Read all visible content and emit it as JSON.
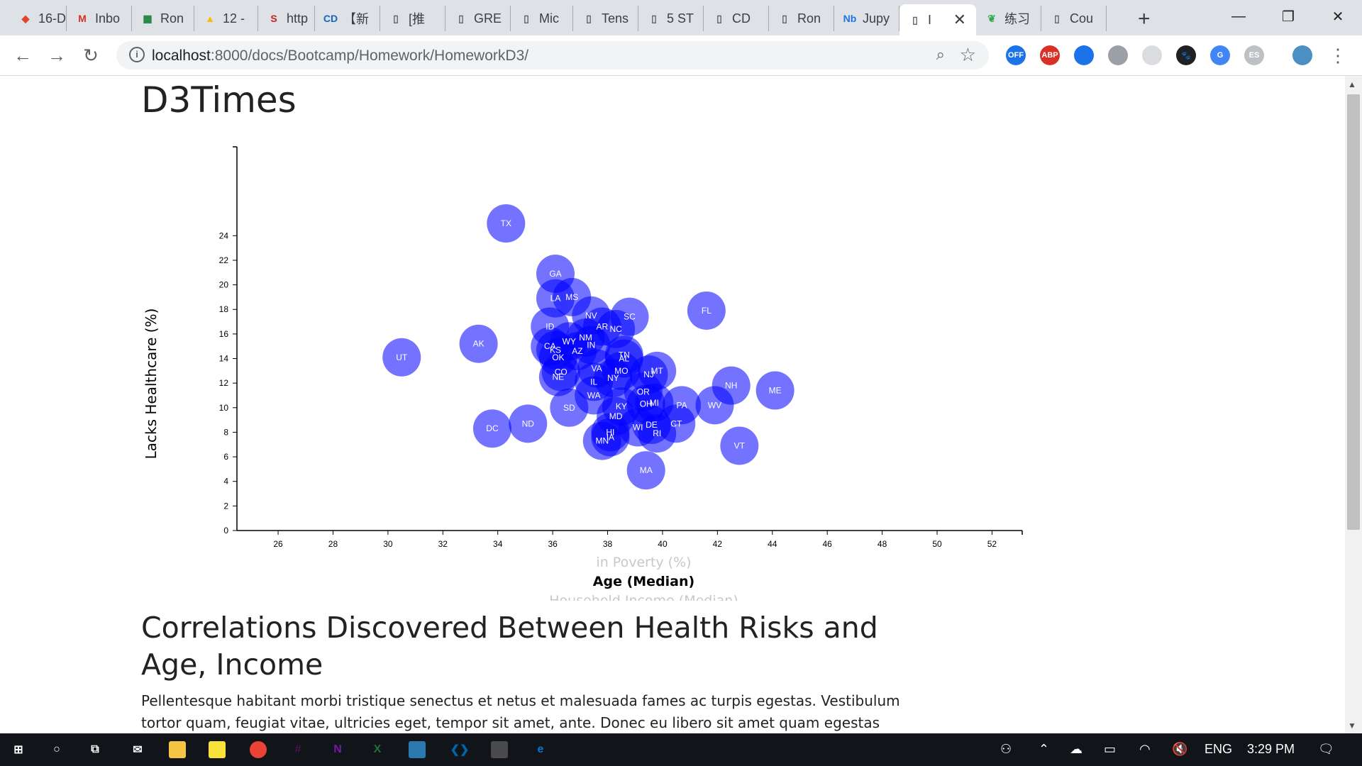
{
  "tabs": [
    {
      "label": "16-D",
      "icon": "gitlab-icon",
      "color": "#e24329"
    },
    {
      "label": "Inbo",
      "icon": "gmail-icon",
      "color": "#d93025"
    },
    {
      "label": "Ron",
      "icon": "sheets-icon",
      "color": "#188038"
    },
    {
      "label": "12 -",
      "icon": "drive-icon",
      "color": "#fbbc04"
    },
    {
      "label": "http",
      "icon": "s-icon",
      "color": "#c5221f"
    },
    {
      "label": "【新",
      "icon": "cd-icon",
      "color": "#1565c0"
    },
    {
      "label": "[推",
      "icon": "page-icon",
      "color": "#5f6368"
    },
    {
      "label": "GRE",
      "icon": "page-icon",
      "color": "#5f6368"
    },
    {
      "label": "Mic",
      "icon": "page-icon",
      "color": "#5f6368"
    },
    {
      "label": "Tens",
      "icon": "page-icon",
      "color": "#5f6368"
    },
    {
      "label": "5 ST",
      "icon": "page-icon",
      "color": "#5f6368"
    },
    {
      "label": "CD",
      "icon": "page-icon",
      "color": "#5f6368"
    },
    {
      "label": "Ron",
      "icon": "page-icon",
      "color": "#5f6368"
    },
    {
      "label": "Jupy",
      "icon": "notebook-icon",
      "color": "#1a73e8"
    },
    {
      "label": "I",
      "icon": "page-icon",
      "color": "#5f6368",
      "active": true
    },
    {
      "label": "练习",
      "icon": "leaf-icon",
      "color": "#34a853"
    },
    {
      "label": "Cou",
      "icon": "page-icon",
      "color": "#5f6368"
    }
  ],
  "address": {
    "host": "localhost",
    "path": ":8000/docs/Bootcamp/Homework/HomeworkD3/"
  },
  "extensions": [
    {
      "name": "off-extension-icon",
      "label": "OFF",
      "color": "#1a73e8"
    },
    {
      "name": "adblock-icon",
      "label": "ABP",
      "color": "#d93025"
    },
    {
      "name": "circle-extension-icon",
      "label": "",
      "color": "#1a73e8"
    },
    {
      "name": "grey-extension-icon",
      "label": "",
      "color": "#9aa0a6"
    },
    {
      "name": "light-extension-icon",
      "label": "",
      "color": "#dadce0"
    },
    {
      "name": "paw-icon",
      "label": "🐾",
      "color": "#202124"
    },
    {
      "name": "translate-icon",
      "label": "G",
      "color": "#4285f4"
    },
    {
      "name": "es-extension-icon",
      "label": "ES",
      "color": "#bdc1c6"
    }
  ],
  "page": {
    "title": "D3Times",
    "section_heading": "Correlations Discovered Between Health Risks and Age, Income",
    "body_text": "Pellentesque habitant morbi tristique senectus et netus et malesuada fames ac turpis egestas. Vestibulum tortor quam, feugiat vitae, ultricies eget, tempor sit amet, ante. Donec eu libero sit amet quam egestas semper. Aenean"
  },
  "chart_data": {
    "type": "scatter",
    "ylabel": "Lacks Healthcare (%)",
    "xlabels": [
      {
        "text": "in Poverty (%)",
        "active": false
      },
      {
        "text": "Age (Median)",
        "active": true
      },
      {
        "text": "Household Income (Median)",
        "active": false
      }
    ],
    "xlim": [
      24.5,
      53.1
    ],
    "ylim": [
      0,
      25
    ],
    "xticks": [
      26,
      28,
      30,
      32,
      34,
      36,
      38,
      40,
      42,
      44,
      46,
      48,
      50,
      52
    ],
    "yticks": [
      0,
      2,
      4,
      6,
      8,
      10,
      12,
      14,
      16,
      18,
      20,
      22,
      24
    ],
    "marker_color": "#0000ff",
    "points": [
      {
        "abbr": "TX",
        "x": 34.3,
        "y": 25.0
      },
      {
        "abbr": "GA",
        "x": 36.1,
        "y": 20.9
      },
      {
        "abbr": "LA",
        "x": 36.1,
        "y": 18.9
      },
      {
        "abbr": "MS",
        "x": 36.7,
        "y": 19.0
      },
      {
        "abbr": "FL",
        "x": 41.6,
        "y": 17.9
      },
      {
        "abbr": "NV",
        "x": 37.4,
        "y": 17.5
      },
      {
        "abbr": "SC",
        "x": 38.8,
        "y": 17.4
      },
      {
        "abbr": "ID",
        "x": 35.9,
        "y": 16.6
      },
      {
        "abbr": "AR",
        "x": 37.8,
        "y": 16.6
      },
      {
        "abbr": "NC",
        "x": 38.3,
        "y": 16.4
      },
      {
        "abbr": "NM",
        "x": 37.2,
        "y": 15.7
      },
      {
        "abbr": "WY",
        "x": 36.6,
        "y": 15.4
      },
      {
        "abbr": "AK",
        "x": 33.3,
        "y": 15.2
      },
      {
        "abbr": "IN",
        "x": 37.4,
        "y": 15.1
      },
      {
        "abbr": "CA",
        "x": 35.9,
        "y": 15.0
      },
      {
        "abbr": "KS",
        "x": 36.1,
        "y": 14.7
      },
      {
        "abbr": "AZ",
        "x": 36.9,
        "y": 14.6
      },
      {
        "abbr": "TN",
        "x": 38.6,
        "y": 14.3
      },
      {
        "abbr": "UT",
        "x": 30.5,
        "y": 14.1
      },
      {
        "abbr": "OK",
        "x": 36.2,
        "y": 14.1
      },
      {
        "abbr": "AL",
        "x": 38.6,
        "y": 14.0
      },
      {
        "abbr": "VA",
        "x": 37.6,
        "y": 13.2
      },
      {
        "abbr": "MO",
        "x": 38.5,
        "y": 13.0
      },
      {
        "abbr": "MT",
        "x": 39.8,
        "y": 13.0
      },
      {
        "abbr": "CO",
        "x": 36.3,
        "y": 12.9
      },
      {
        "abbr": "NJ",
        "x": 39.5,
        "y": 12.7
      },
      {
        "abbr": "NE",
        "x": 36.2,
        "y": 12.5
      },
      {
        "abbr": "NY",
        "x": 38.2,
        "y": 12.4
      },
      {
        "abbr": "IL",
        "x": 37.5,
        "y": 12.1
      },
      {
        "abbr": "NH",
        "x": 42.5,
        "y": 11.8
      },
      {
        "abbr": "ME",
        "x": 44.1,
        "y": 11.4
      },
      {
        "abbr": "OR",
        "x": 39.3,
        "y": 11.3
      },
      {
        "abbr": "WA",
        "x": 37.5,
        "y": 11.0
      },
      {
        "abbr": "MI",
        "x": 39.7,
        "y": 10.4
      },
      {
        "abbr": "OH",
        "x": 39.4,
        "y": 10.3
      },
      {
        "abbr": "KY",
        "x": 38.5,
        "y": 10.1
      },
      {
        "abbr": "PA",
        "x": 40.7,
        "y": 10.2
      },
      {
        "abbr": "WV",
        "x": 41.9,
        "y": 10.2
      },
      {
        "abbr": "SD",
        "x": 36.6,
        "y": 10.0
      },
      {
        "abbr": "MD",
        "x": 38.3,
        "y": 9.3
      },
      {
        "abbr": "ND",
        "x": 35.1,
        "y": 8.7
      },
      {
        "abbr": "CT",
        "x": 40.5,
        "y": 8.7
      },
      {
        "abbr": "DE",
        "x": 39.6,
        "y": 8.6
      },
      {
        "abbr": "WI",
        "x": 39.1,
        "y": 8.4
      },
      {
        "abbr": "DC",
        "x": 33.8,
        "y": 8.3
      },
      {
        "abbr": "HI",
        "x": 38.1,
        "y": 8.0
      },
      {
        "abbr": "RI",
        "x": 39.8,
        "y": 7.9
      },
      {
        "abbr": "IA",
        "x": 38.1,
        "y": 7.6
      },
      {
        "abbr": "MN",
        "x": 37.8,
        "y": 7.3
      },
      {
        "abbr": "VT",
        "x": 42.8,
        "y": 6.9
      },
      {
        "abbr": "MA",
        "x": 39.4,
        "y": 4.9
      }
    ]
  },
  "taskbar": {
    "apps": [
      {
        "name": "windows-start-icon",
        "label": "⊞",
        "color": "#ffffff"
      },
      {
        "name": "cortana-icon",
        "label": "○",
        "color": "#ffffff"
      },
      {
        "name": "task-view-icon",
        "label": "⧉",
        "color": "#ffffff"
      },
      {
        "name": "mail-app-icon",
        "label": "✉",
        "color": "#ffffff"
      },
      {
        "name": "file-explorer-icon",
        "label": "",
        "color": "#f6c445"
      },
      {
        "name": "sticky-notes-icon",
        "label": "",
        "color": "#f9e23a"
      },
      {
        "name": "chrome-app-icon",
        "label": "",
        "color": "#ea4335"
      },
      {
        "name": "slack-app-icon",
        "label": "#",
        "color": "#4a154b"
      },
      {
        "name": "onenote-app-icon",
        "label": "N",
        "color": "#7719aa"
      },
      {
        "name": "excel-app-icon",
        "label": "X",
        "color": "#1d6f42"
      },
      {
        "name": "store-app-icon",
        "label": "",
        "color": "#2a7ab0"
      },
      {
        "name": "vscode-app-icon",
        "label": "❮❯",
        "color": "#0065a9"
      },
      {
        "name": "terminal-app-icon",
        "label": "",
        "color": "#4b4b4b"
      },
      {
        "name": "edge-app-icon",
        "label": "e",
        "color": "#0078d7"
      }
    ],
    "tray": {
      "language": "ENG",
      "time": "3:29 PM"
    }
  }
}
